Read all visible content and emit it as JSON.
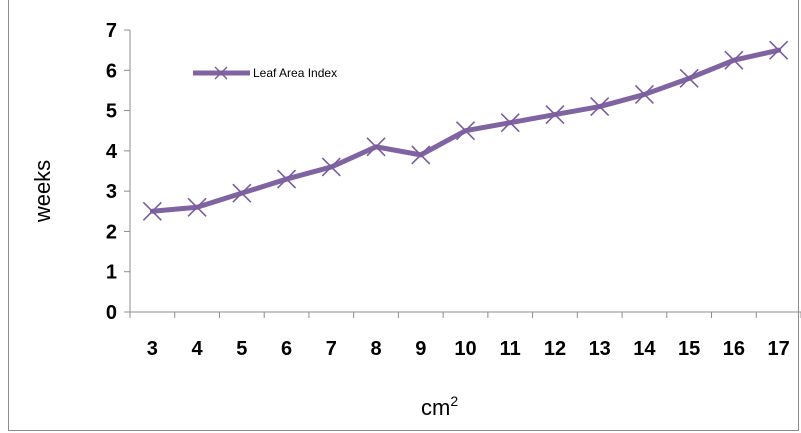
{
  "chart_data": {
    "type": "line",
    "x": [
      3,
      4,
      5,
      6,
      7,
      8,
      9,
      10,
      11,
      12,
      13,
      14,
      15,
      16,
      17
    ],
    "series": [
      {
        "name": "Leaf Area Index",
        "values": [
          2.5,
          2.6,
          2.95,
          3.3,
          3.6,
          4.1,
          3.9,
          4.5,
          4.7,
          4.9,
          5.1,
          5.4,
          5.8,
          6.25,
          6.5
        ],
        "color": "#8064a2",
        "marker": "x"
      }
    ],
    "xlabel": "cm",
    "xlabel_superscript": "2",
    "ylabel": "weeks",
    "ylim": [
      0,
      7
    ],
    "yticks": [
      0,
      1,
      2,
      3,
      4,
      5,
      6,
      7
    ],
    "grid": false,
    "legend_position": "top-left"
  }
}
